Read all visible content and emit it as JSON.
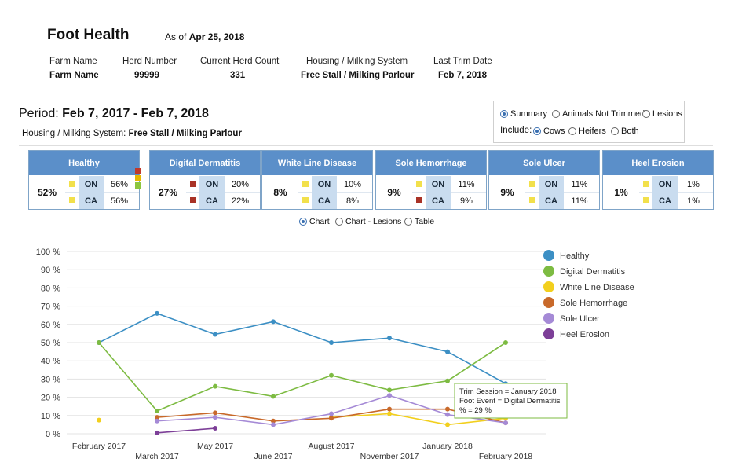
{
  "header": {
    "title": "Foot Health",
    "as_of_label": "As of",
    "as_of_date": "Apr 25, 2018"
  },
  "farm_info": {
    "columns": [
      {
        "label": "Farm Name",
        "value": "Farm Name"
      },
      {
        "label": "Herd Number",
        "value": "99999"
      },
      {
        "label": "Current Herd Count",
        "value": "331"
      },
      {
        "label": "Housing / Milking System",
        "value": "Free Stall / Milking Parlour"
      },
      {
        "label": "Last Trim Date",
        "value": "Feb 7, 2018"
      }
    ]
  },
  "period": {
    "label": "Period:",
    "value": "Feb 7, 2017 - Feb 7, 2018"
  },
  "housing": {
    "label": "Housing / Milking System:",
    "value": "Free Stall / Milking Parlour"
  },
  "options": {
    "views": [
      {
        "label": "Summary",
        "selected": true
      },
      {
        "label": "Animals Not Trimmed",
        "selected": false
      },
      {
        "label": "Lesions",
        "selected": false
      }
    ],
    "include_label": "Include:",
    "include": [
      {
        "label": "Cows",
        "selected": true
      },
      {
        "label": "Heifers",
        "selected": false
      },
      {
        "label": "Both",
        "selected": false
      }
    ]
  },
  "cards": [
    {
      "title": "Healthy",
      "pct": "52%",
      "on": "56%",
      "ca": "56%",
      "on_color": "#f2e04b",
      "ca_color": "#f2e04b"
    },
    {
      "title": "Digital Dermatitis",
      "pct": "27%",
      "on": "20%",
      "ca": "22%",
      "on_color": "#a93226",
      "ca_color": "#a93226"
    },
    {
      "title": "White Line Disease",
      "pct": "8%",
      "on": "10%",
      "ca": "8%",
      "on_color": "#f2e04b",
      "ca_color": "#f2e04b"
    },
    {
      "title": "Sole Hemorrhage",
      "pct": "9%",
      "on": "11%",
      "ca": "9%",
      "on_color": "#f2e04b",
      "ca_color": "#a93226"
    },
    {
      "title": "Sole Ulcer",
      "pct": "9%",
      "on": "11%",
      "ca": "11%",
      "on_color": "#f2e04b",
      "ca_color": "#f2e04b"
    },
    {
      "title": "Heel Erosion",
      "pct": "1%",
      "on": "1%",
      "ca": "1%",
      "on_color": "#f2e04b",
      "ca_color": "#f2e04b"
    }
  ],
  "card_tags": {
    "on": "ON",
    "ca": "CA"
  },
  "status_legend_colors": [
    "#c0392b",
    "#e6b800",
    "#8cc63f"
  ],
  "view_options": [
    {
      "label": "Chart",
      "selected": true
    },
    {
      "label": "Chart - Lesions",
      "selected": false
    },
    {
      "label": "Table",
      "selected": false
    }
  ],
  "tooltip": {
    "line1": "Trim Session = January 2018",
    "line2": "Foot Event = Digital Dermatitis",
    "line3": "% = 29 %"
  },
  "chart_data": {
    "type": "line",
    "categories": [
      "February 2017",
      "March 2017",
      "May 2017",
      "June 2017",
      "August 2017",
      "November 2017",
      "January 2018",
      "February 2018"
    ],
    "y_ticks": [
      "0 %",
      "10 %",
      "20 %",
      "30 %",
      "40 %",
      "50 %",
      "60 %",
      "70 %",
      "80 %",
      "90 %",
      "100 %"
    ],
    "ylim": [
      0,
      100
    ],
    "grid": true,
    "legend_position": "right",
    "series": [
      {
        "name": "Healthy",
        "color": "#3c8fc4",
        "values": [
          50,
          66,
          54.5,
          61.5,
          50,
          52.5,
          45,
          27.5
        ]
      },
      {
        "name": "Digital Dermatitis",
        "color": "#7dbb42",
        "values": [
          50,
          12.5,
          26,
          20.5,
          32,
          24,
          29,
          50
        ]
      },
      {
        "name": "White Line Disease",
        "color": "#f2cf1d",
        "values": [
          7.5,
          null,
          null,
          null,
          9,
          11,
          5,
          8.5
        ]
      },
      {
        "name": "Sole Hemorrhage",
        "color": "#c8692a",
        "values": [
          null,
          9,
          11.5,
          7,
          8.5,
          13.5,
          13.5,
          6
        ]
      },
      {
        "name": "Sole Ulcer",
        "color": "#a58ad6",
        "values": [
          null,
          7,
          9,
          5,
          11,
          21,
          10.5,
          6
        ]
      },
      {
        "name": "Heel Erosion",
        "color": "#7d3f98",
        "values": [
          null,
          0.5,
          3,
          null,
          null,
          null,
          null,
          null
        ]
      }
    ]
  }
}
